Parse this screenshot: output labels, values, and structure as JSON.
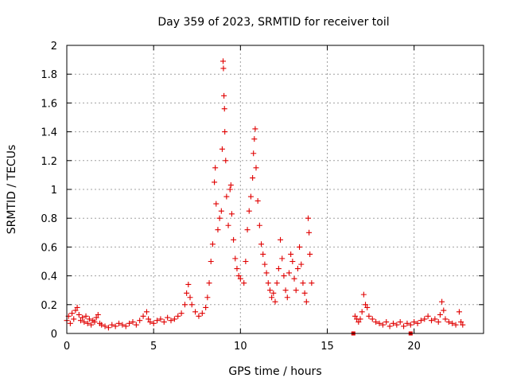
{
  "chart_data": {
    "type": "scatter",
    "title": "Day 359 of 2023, SRMTID for receiver toil",
    "xlabel": "GPS time / hours",
    "ylabel": "SRMTID / TECUs",
    "xlim": [
      0,
      24
    ],
    "ylim": [
      0,
      2
    ],
    "xticks": [
      0,
      5,
      10,
      15,
      20
    ],
    "yticks": [
      0,
      0.2,
      0.4,
      0.6,
      0.8,
      1,
      1.2,
      1.4,
      1.6,
      1.8,
      2
    ],
    "xtick_labels": [
      "0",
      "5",
      "10",
      "15",
      "20"
    ],
    "ytick_labels": [
      "0",
      "0.2",
      "0.4",
      "0.6",
      "0.8",
      "1",
      "1.2",
      "1.4",
      "1.6",
      "1.8",
      "2"
    ],
    "grid": true,
    "marker": "+",
    "color": "#e00000",
    "series": [
      {
        "name": "SRMTID",
        "points": [
          [
            0.0,
            0.09
          ],
          [
            0.1,
            0.12
          ],
          [
            0.2,
            0.07
          ],
          [
            0.3,
            0.14
          ],
          [
            0.4,
            0.1
          ],
          [
            0.5,
            0.16
          ],
          [
            0.6,
            0.18
          ],
          [
            0.7,
            0.13
          ],
          [
            0.8,
            0.09
          ],
          [
            0.9,
            0.11
          ],
          [
            1.0,
            0.08
          ],
          [
            1.1,
            0.12
          ],
          [
            1.2,
            0.07
          ],
          [
            1.3,
            0.1
          ],
          [
            1.4,
            0.06
          ],
          [
            1.5,
            0.09
          ],
          [
            1.6,
            0.08
          ],
          [
            1.7,
            0.11
          ],
          [
            1.8,
            0.13
          ],
          [
            1.9,
            0.07
          ],
          [
            2.0,
            0.06
          ],
          [
            2.2,
            0.05
          ],
          [
            2.4,
            0.04
          ],
          [
            2.6,
            0.06
          ],
          [
            2.8,
            0.05
          ],
          [
            3.0,
            0.07
          ],
          [
            3.2,
            0.06
          ],
          [
            3.4,
            0.05
          ],
          [
            3.6,
            0.07
          ],
          [
            3.8,
            0.08
          ],
          [
            4.0,
            0.06
          ],
          [
            4.2,
            0.09
          ],
          [
            4.4,
            0.12
          ],
          [
            4.6,
            0.15
          ],
          [
            4.7,
            0.1
          ],
          [
            4.8,
            0.08
          ],
          [
            5.0,
            0.07
          ],
          [
            5.2,
            0.09
          ],
          [
            5.4,
            0.1
          ],
          [
            5.6,
            0.08
          ],
          [
            5.8,
            0.11
          ],
          [
            6.0,
            0.09
          ],
          [
            6.2,
            0.1
          ],
          [
            6.4,
            0.12
          ],
          [
            6.6,
            0.14
          ],
          [
            6.8,
            0.2
          ],
          [
            6.9,
            0.28
          ],
          [
            7.0,
            0.34
          ],
          [
            7.1,
            0.25
          ],
          [
            7.2,
            0.2
          ],
          [
            7.4,
            0.15
          ],
          [
            7.6,
            0.12
          ],
          [
            7.8,
            0.14
          ],
          [
            8.0,
            0.18
          ],
          [
            8.1,
            0.25
          ],
          [
            8.2,
            0.35
          ],
          [
            8.3,
            0.5
          ],
          [
            8.4,
            0.62
          ],
          [
            8.5,
            1.05
          ],
          [
            8.55,
            1.15
          ],
          [
            8.6,
            0.9
          ],
          [
            8.7,
            0.72
          ],
          [
            8.8,
            0.8
          ],
          [
            8.9,
            0.85
          ],
          [
            8.95,
            1.28
          ],
          [
            9.0,
            1.89
          ],
          [
            9.02,
            1.84
          ],
          [
            9.05,
            1.65
          ],
          [
            9.08,
            1.56
          ],
          [
            9.1,
            1.4
          ],
          [
            9.15,
            1.2
          ],
          [
            9.2,
            0.95
          ],
          [
            9.3,
            0.75
          ],
          [
            9.4,
            1.0
          ],
          [
            9.45,
            1.03
          ],
          [
            9.5,
            0.83
          ],
          [
            9.6,
            0.65
          ],
          [
            9.7,
            0.52
          ],
          [
            9.8,
            0.45
          ],
          [
            9.9,
            0.4
          ],
          [
            10.0,
            0.38
          ],
          [
            10.2,
            0.35
          ],
          [
            10.3,
            0.5
          ],
          [
            10.4,
            0.72
          ],
          [
            10.5,
            0.85
          ],
          [
            10.6,
            0.95
          ],
          [
            10.7,
            1.08
          ],
          [
            10.75,
            1.25
          ],
          [
            10.8,
            1.35
          ],
          [
            10.85,
            1.42
          ],
          [
            10.9,
            1.15
          ],
          [
            11.0,
            0.92
          ],
          [
            11.1,
            0.75
          ],
          [
            11.2,
            0.62
          ],
          [
            11.3,
            0.55
          ],
          [
            11.4,
            0.48
          ],
          [
            11.5,
            0.42
          ],
          [
            11.6,
            0.35
          ],
          [
            11.7,
            0.3
          ],
          [
            11.8,
            0.25
          ],
          [
            11.9,
            0.28
          ],
          [
            12.0,
            0.22
          ],
          [
            12.1,
            0.35
          ],
          [
            12.2,
            0.45
          ],
          [
            12.3,
            0.65
          ],
          [
            12.4,
            0.52
          ],
          [
            12.5,
            0.4
          ],
          [
            12.6,
            0.3
          ],
          [
            12.7,
            0.25
          ],
          [
            12.8,
            0.42
          ],
          [
            12.9,
            0.55
          ],
          [
            13.0,
            0.5
          ],
          [
            13.1,
            0.38
          ],
          [
            13.2,
            0.3
          ],
          [
            13.3,
            0.45
          ],
          [
            13.4,
            0.6
          ],
          [
            13.5,
            0.48
          ],
          [
            13.6,
            0.35
          ],
          [
            13.7,
            0.28
          ],
          [
            13.8,
            0.22
          ],
          [
            13.9,
            0.8
          ],
          [
            13.95,
            0.7
          ],
          [
            14.0,
            0.55
          ],
          [
            14.1,
            0.35
          ],
          [
            16.6,
            0.12
          ],
          [
            16.7,
            0.1
          ],
          [
            16.8,
            0.08
          ],
          [
            16.9,
            0.1
          ],
          [
            17.0,
            0.15
          ],
          [
            17.1,
            0.27
          ],
          [
            17.2,
            0.2
          ],
          [
            17.3,
            0.18
          ],
          [
            17.4,
            0.12
          ],
          [
            17.6,
            0.1
          ],
          [
            17.8,
            0.08
          ],
          [
            18.0,
            0.07
          ],
          [
            18.2,
            0.06
          ],
          [
            18.4,
            0.08
          ],
          [
            18.6,
            0.05
          ],
          [
            18.8,
            0.07
          ],
          [
            19.0,
            0.06
          ],
          [
            19.2,
            0.08
          ],
          [
            19.4,
            0.05
          ],
          [
            19.6,
            0.07
          ],
          [
            19.8,
            0.06
          ],
          [
            20.0,
            0.08
          ],
          [
            20.2,
            0.07
          ],
          [
            20.4,
            0.09
          ],
          [
            20.6,
            0.1
          ],
          [
            20.8,
            0.12
          ],
          [
            21.0,
            0.09
          ],
          [
            21.2,
            0.1
          ],
          [
            21.4,
            0.08
          ],
          [
            21.5,
            0.13
          ],
          [
            21.6,
            0.22
          ],
          [
            21.7,
            0.16
          ],
          [
            21.8,
            0.1
          ],
          [
            22.0,
            0.08
          ],
          [
            22.2,
            0.07
          ],
          [
            22.4,
            0.06
          ],
          [
            22.6,
            0.15
          ],
          [
            22.7,
            0.08
          ],
          [
            22.8,
            0.06
          ]
        ]
      }
    ],
    "square_markers": [
      [
        16.5,
        0.0
      ],
      [
        19.8,
        0.0
      ]
    ]
  }
}
